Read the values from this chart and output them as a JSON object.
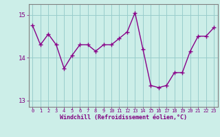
{
  "x": [
    0,
    1,
    2,
    3,
    4,
    5,
    6,
    7,
    8,
    9,
    10,
    11,
    12,
    13,
    14,
    15,
    16,
    17,
    18,
    19,
    20,
    21,
    22,
    23
  ],
  "y": [
    14.75,
    14.3,
    14.55,
    14.3,
    13.75,
    14.05,
    14.3,
    14.3,
    14.15,
    14.3,
    14.3,
    14.45,
    14.6,
    15.05,
    14.2,
    13.35,
    13.3,
    13.35,
    13.65,
    13.65,
    14.15,
    14.5,
    14.5,
    14.7
  ],
  "line_color": "#880088",
  "marker": "+",
  "marker_size": 4,
  "marker_lw": 1.0,
  "line_width": 1.0,
  "bg_color": "#cceee8",
  "grid_color": "#99cccc",
  "xlabel": "Windchill (Refroidissement éolien,°C)",
  "xlim": [
    -0.5,
    23.5
  ],
  "ylim": [
    12.85,
    15.25
  ],
  "yticks": [
    13,
    14,
    15
  ],
  "xticks": [
    0,
    1,
    2,
    3,
    4,
    5,
    6,
    7,
    8,
    9,
    10,
    11,
    12,
    13,
    14,
    15,
    16,
    17,
    18,
    19,
    20,
    21,
    22,
    23
  ],
  "label_color": "#800080",
  "tick_color": "#800080",
  "axis_color": "#808080",
  "xlabel_fontsize": 6.0,
  "xtick_fontsize": 5.0,
  "ytick_fontsize": 6.5
}
